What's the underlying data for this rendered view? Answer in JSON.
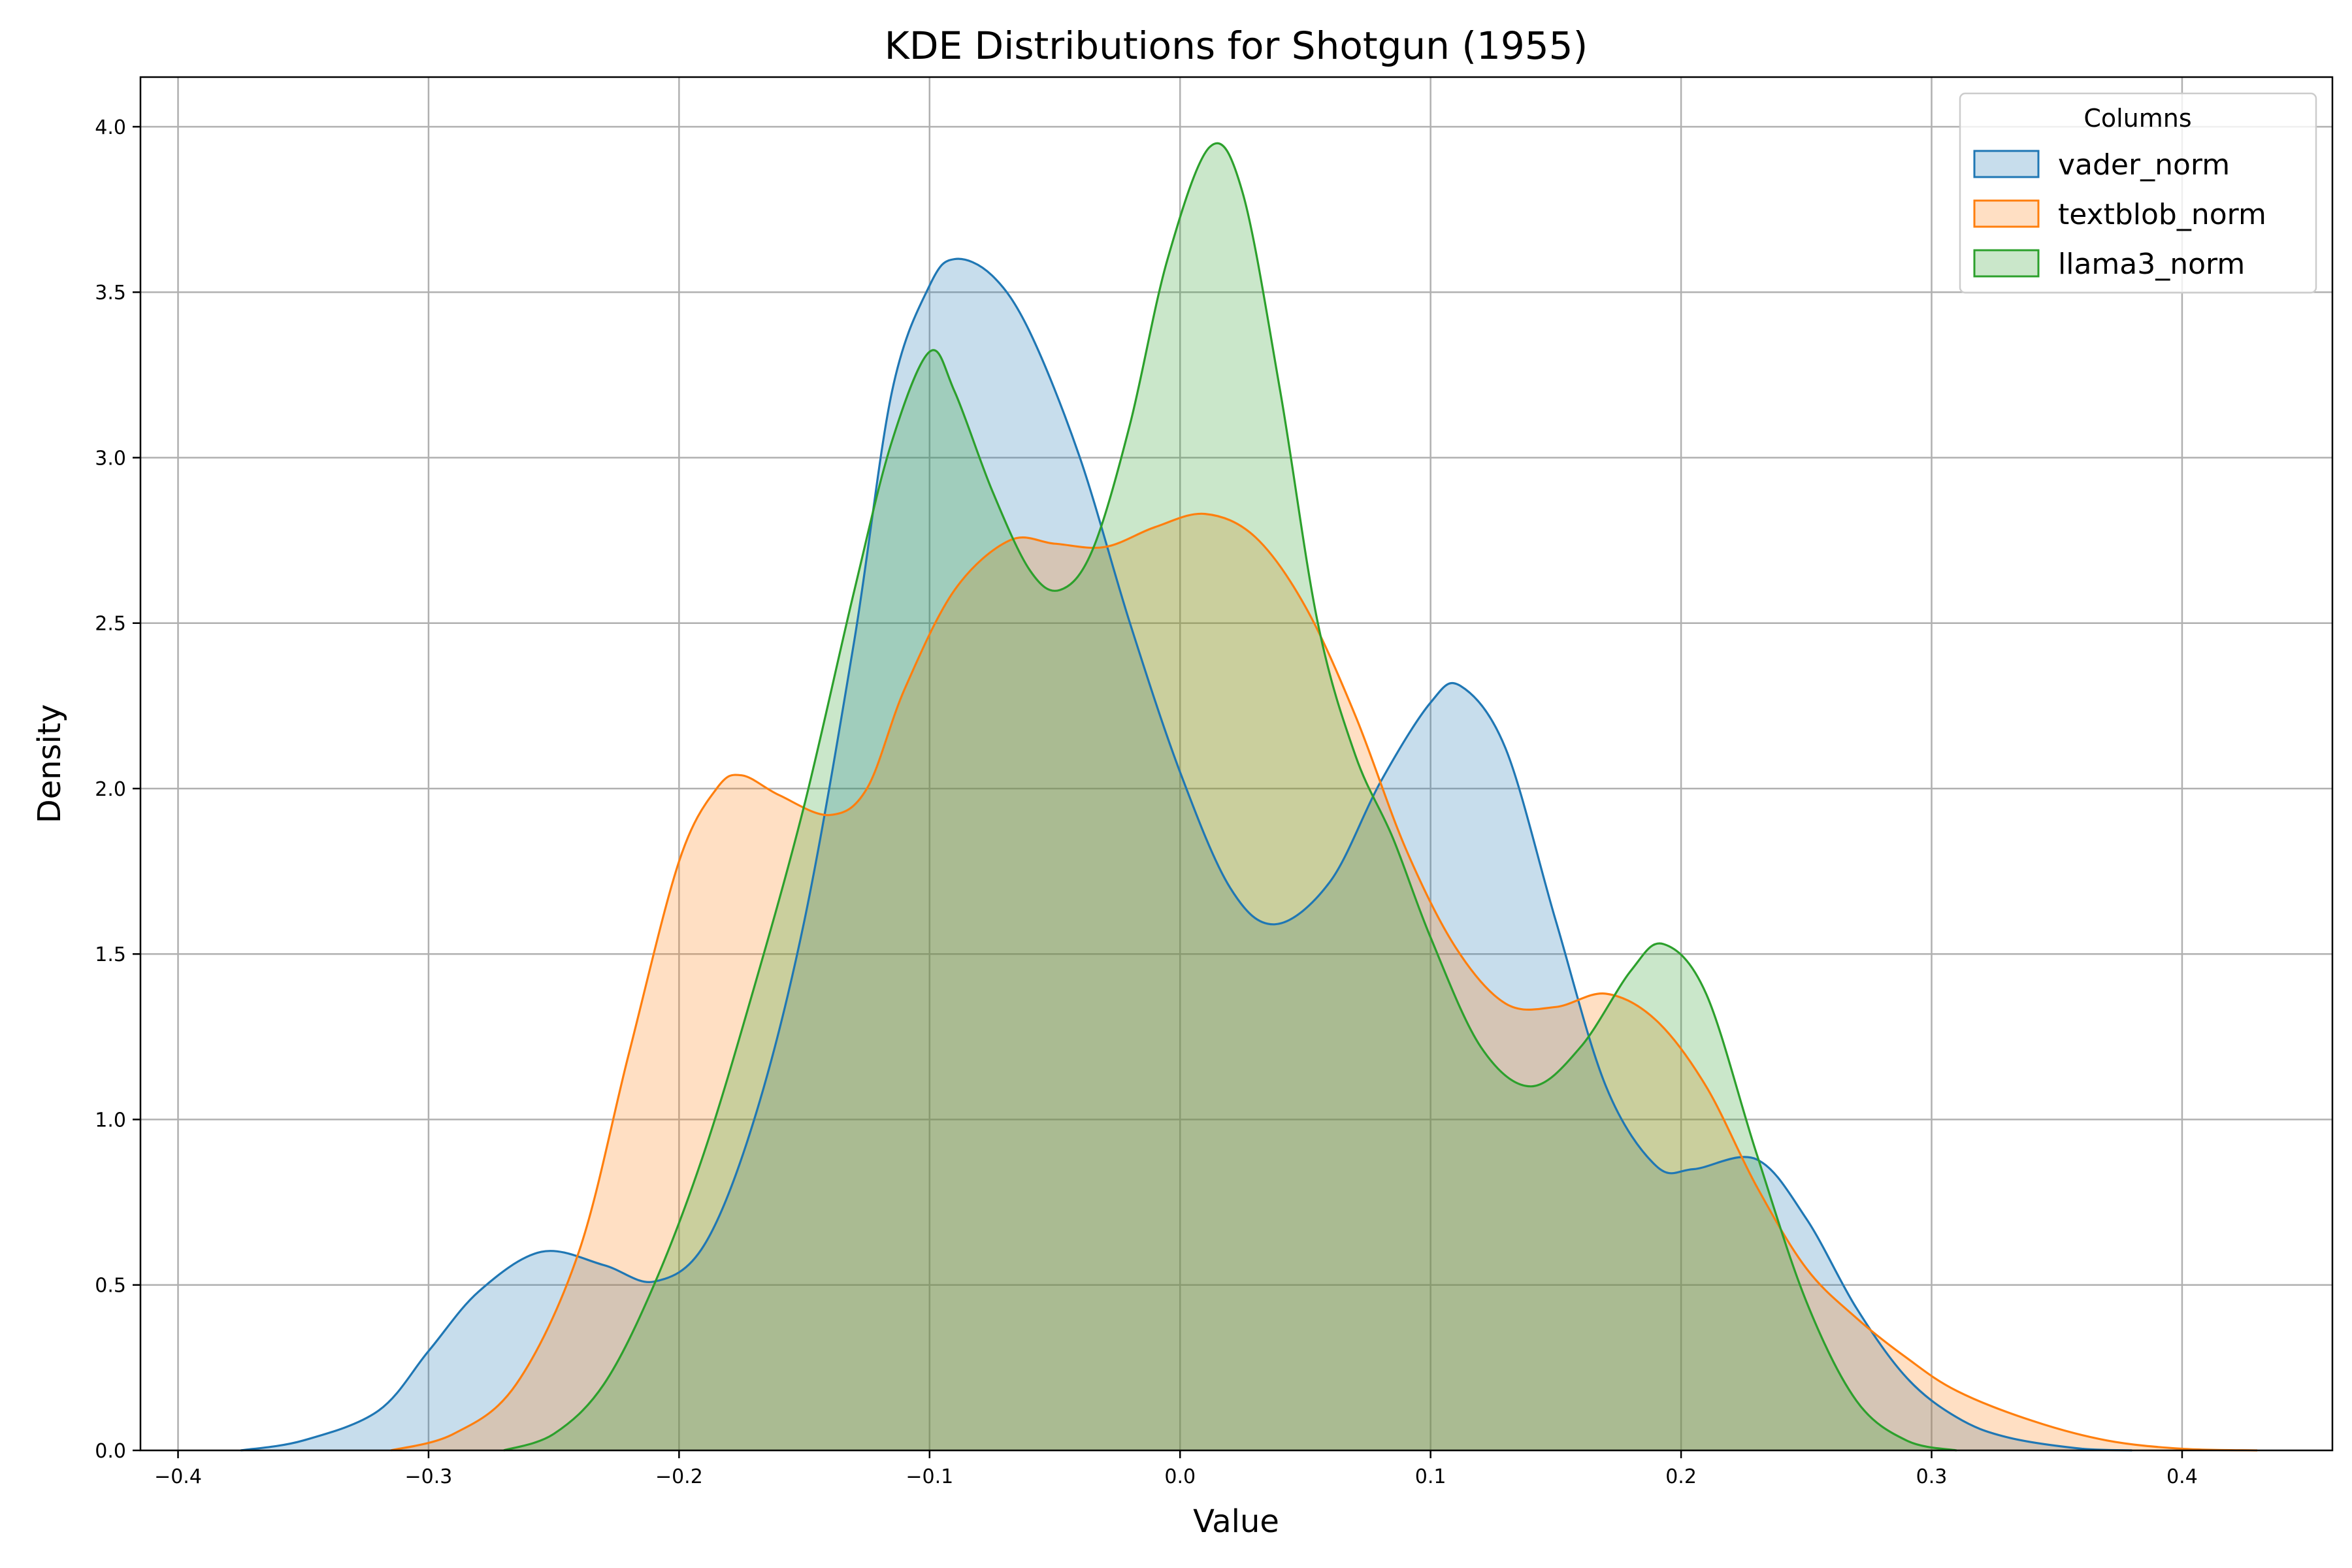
{
  "chart_data": {
    "type": "area",
    "title": "KDE Distributions for Shotgun (1955)",
    "xlabel": "Value",
    "ylabel": "Density",
    "xlim": [
      -0.415,
      0.46
    ],
    "ylim": [
      0,
      4.15
    ],
    "xticks": [
      -0.4,
      -0.3,
      -0.2,
      -0.1,
      0.0,
      0.1,
      0.2,
      0.3,
      0.4
    ],
    "xtick_labels": [
      "−0.4",
      "−0.3",
      "−0.2",
      "−0.1",
      "0.0",
      "0.1",
      "0.2",
      "0.3",
      "0.4"
    ],
    "yticks": [
      0.0,
      0.5,
      1.0,
      1.5,
      2.0,
      2.5,
      3.0,
      3.5,
      4.0
    ],
    "ytick_labels": [
      "0.0",
      "0.5",
      "1.0",
      "1.5",
      "2.0",
      "2.5",
      "3.0",
      "3.5",
      "4.0"
    ],
    "grid": true,
    "legend": {
      "title": "Columns",
      "position": "top-right"
    },
    "series": [
      {
        "name": "vader_norm",
        "color": "#1f77b4",
        "points": [
          [
            -0.375,
            0.0
          ],
          [
            -0.35,
            0.03
          ],
          [
            -0.32,
            0.12
          ],
          [
            -0.3,
            0.3
          ],
          [
            -0.28,
            0.48
          ],
          [
            -0.255,
            0.6
          ],
          [
            -0.23,
            0.56
          ],
          [
            -0.21,
            0.51
          ],
          [
            -0.19,
            0.62
          ],
          [
            -0.17,
            1.0
          ],
          [
            -0.15,
            1.6
          ],
          [
            -0.13,
            2.45
          ],
          [
            -0.115,
            3.2
          ],
          [
            -0.1,
            3.52
          ],
          [
            -0.09,
            3.6
          ],
          [
            -0.075,
            3.55
          ],
          [
            -0.06,
            3.38
          ],
          [
            -0.04,
            3.0
          ],
          [
            -0.02,
            2.5
          ],
          [
            0.0,
            2.05
          ],
          [
            0.02,
            1.7
          ],
          [
            0.038,
            1.59
          ],
          [
            0.06,
            1.72
          ],
          [
            0.08,
            2.02
          ],
          [
            0.1,
            2.26
          ],
          [
            0.112,
            2.31
          ],
          [
            0.13,
            2.12
          ],
          [
            0.15,
            1.6
          ],
          [
            0.17,
            1.1
          ],
          [
            0.19,
            0.86
          ],
          [
            0.205,
            0.85
          ],
          [
            0.23,
            0.88
          ],
          [
            0.25,
            0.7
          ],
          [
            0.27,
            0.43
          ],
          [
            0.29,
            0.22
          ],
          [
            0.31,
            0.1
          ],
          [
            0.33,
            0.04
          ],
          [
            0.36,
            0.005
          ],
          [
            0.38,
            0.0
          ]
        ]
      },
      {
        "name": "textblob_norm",
        "color": "#ff7f0e",
        "points": [
          [
            -0.315,
            0.0
          ],
          [
            -0.29,
            0.05
          ],
          [
            -0.265,
            0.2
          ],
          [
            -0.24,
            0.6
          ],
          [
            -0.22,
            1.2
          ],
          [
            -0.2,
            1.78
          ],
          [
            -0.185,
            2.0
          ],
          [
            -0.175,
            2.04
          ],
          [
            -0.16,
            1.98
          ],
          [
            -0.14,
            1.92
          ],
          [
            -0.125,
            2.0
          ],
          [
            -0.11,
            2.3
          ],
          [
            -0.09,
            2.6
          ],
          [
            -0.068,
            2.75
          ],
          [
            -0.05,
            2.74
          ],
          [
            -0.03,
            2.73
          ],
          [
            -0.01,
            2.79
          ],
          [
            0.01,
            2.83
          ],
          [
            0.03,
            2.76
          ],
          [
            0.05,
            2.55
          ],
          [
            0.07,
            2.22
          ],
          [
            0.09,
            1.82
          ],
          [
            0.11,
            1.52
          ],
          [
            0.13,
            1.35
          ],
          [
            0.15,
            1.34
          ],
          [
            0.17,
            1.38
          ],
          [
            0.19,
            1.3
          ],
          [
            0.21,
            1.1
          ],
          [
            0.23,
            0.8
          ],
          [
            0.25,
            0.55
          ],
          [
            0.27,
            0.4
          ],
          [
            0.29,
            0.28
          ],
          [
            0.31,
            0.18
          ],
          [
            0.34,
            0.09
          ],
          [
            0.37,
            0.03
          ],
          [
            0.4,
            0.005
          ],
          [
            0.43,
            0.0
          ]
        ]
      },
      {
        "name": "llama3_norm",
        "color": "#2ca02c",
        "points": [
          [
            -0.27,
            0.0
          ],
          [
            -0.25,
            0.05
          ],
          [
            -0.23,
            0.2
          ],
          [
            -0.21,
            0.5
          ],
          [
            -0.19,
            0.9
          ],
          [
            -0.17,
            1.4
          ],
          [
            -0.15,
            1.95
          ],
          [
            -0.13,
            2.6
          ],
          [
            -0.115,
            3.05
          ],
          [
            -0.1,
            3.32
          ],
          [
            -0.09,
            3.2
          ],
          [
            -0.075,
            2.9
          ],
          [
            -0.06,
            2.66
          ],
          [
            -0.048,
            2.6
          ],
          [
            -0.035,
            2.72
          ],
          [
            -0.02,
            3.1
          ],
          [
            -0.005,
            3.6
          ],
          [
            0.012,
            3.94
          ],
          [
            0.025,
            3.8
          ],
          [
            0.04,
            3.2
          ],
          [
            0.055,
            2.5
          ],
          [
            0.07,
            2.1
          ],
          [
            0.085,
            1.85
          ],
          [
            0.1,
            1.55
          ],
          [
            0.12,
            1.22
          ],
          [
            0.14,
            1.1
          ],
          [
            0.16,
            1.22
          ],
          [
            0.18,
            1.45
          ],
          [
            0.193,
            1.53
          ],
          [
            0.21,
            1.38
          ],
          [
            0.23,
            0.9
          ],
          [
            0.25,
            0.45
          ],
          [
            0.27,
            0.15
          ],
          [
            0.29,
            0.03
          ],
          [
            0.31,
            0.0
          ]
        ]
      }
    ]
  }
}
